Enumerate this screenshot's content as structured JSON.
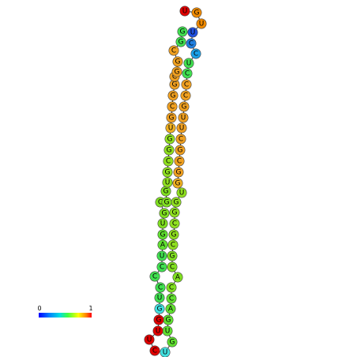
{
  "legend": {
    "min_label": "0",
    "max_label": "1"
  },
  "nucleotides": [
    {
      "base": "U",
      "color": "#e00000"
    },
    {
      "base": "G",
      "color": "#f08a00"
    },
    {
      "base": "U",
      "color": "#f08a00"
    },
    {
      "base": "U",
      "color": "#2050e0"
    },
    {
      "base": "C",
      "color": "#1f7fe0"
    },
    {
      "base": "C",
      "color": "#1aa0e8"
    },
    {
      "base": "U",
      "color": "#40e050"
    },
    {
      "base": "C",
      "color": "#40e050"
    },
    {
      "base": "C",
      "color": "#f0a020"
    },
    {
      "base": "C",
      "color": "#f0a020"
    },
    {
      "base": "G",
      "color": "#f0a020"
    },
    {
      "base": "U",
      "color": "#f0a020"
    },
    {
      "base": "U",
      "color": "#f0a020"
    },
    {
      "base": "C",
      "color": "#f0a020"
    },
    {
      "base": "G",
      "color": "#f0a020"
    },
    {
      "base": "C",
      "color": "#f0a020"
    },
    {
      "base": "G",
      "color": "#f0a020"
    },
    {
      "base": "G",
      "color": "#f0b020"
    },
    {
      "base": "U",
      "color": "#90e020"
    },
    {
      "base": "G",
      "color": "#90e020"
    },
    {
      "base": "G",
      "color": "#90e020"
    },
    {
      "base": "C",
      "color": "#90e020"
    },
    {
      "base": "G",
      "color": "#90e020"
    },
    {
      "base": "C",
      "color": "#90e020"
    },
    {
      "base": "G",
      "color": "#80e020"
    },
    {
      "base": "C",
      "color": "#80e020"
    },
    {
      "base": "A",
      "color": "#80e020"
    },
    {
      "base": "C",
      "color": "#80e020"
    },
    {
      "base": "C",
      "color": "#60e030"
    },
    {
      "base": "A",
      "color": "#60e030"
    },
    {
      "base": "G",
      "color": "#60e030"
    },
    {
      "base": "U",
      "color": "#60e030"
    },
    {
      "base": "G",
      "color": "#60e030"
    },
    {
      "base": "U",
      "color": "#40e0e0"
    },
    {
      "base": "C",
      "color": "#e00000"
    },
    {
      "base": "U",
      "color": "#e00000"
    },
    {
      "base": "U",
      "color": "#e00000"
    },
    {
      "base": "G",
      "color": "#e00000"
    },
    {
      "base": "G",
      "color": "#40e0e0"
    },
    {
      "base": "U",
      "color": "#40e050"
    },
    {
      "base": "C",
      "color": "#40e050"
    },
    {
      "base": "C",
      "color": "#40e050"
    },
    {
      "base": "C",
      "color": "#40e050"
    },
    {
      "base": "U",
      "color": "#40e050"
    },
    {
      "base": "A",
      "color": "#60e030"
    },
    {
      "base": "G",
      "color": "#60e030"
    },
    {
      "base": "U",
      "color": "#80e020"
    },
    {
      "base": "G",
      "color": "#80e020"
    },
    {
      "base": "C",
      "color": "#80e020"
    },
    {
      "base": "G",
      "color": "#80e020"
    },
    {
      "base": "G",
      "color": "#80e020"
    },
    {
      "base": "U",
      "color": "#90e020"
    },
    {
      "base": "G",
      "color": "#90e020"
    },
    {
      "base": "C",
      "color": "#90e020"
    },
    {
      "base": "G",
      "color": "#90e020"
    },
    {
      "base": "G",
      "color": "#90e020"
    },
    {
      "base": "U",
      "color": "#f0b020"
    },
    {
      "base": "G",
      "color": "#f0a020"
    },
    {
      "base": "C",
      "color": "#f0a020"
    },
    {
      "base": "G",
      "color": "#f0a020"
    },
    {
      "base": "G",
      "color": "#f0a020"
    },
    {
      "base": "C",
      "color": "#f0a020"
    },
    {
      "base": "G",
      "color": "#f0a020"
    },
    {
      "base": "G",
      "color": "#f0a020"
    },
    {
      "base": "C",
      "color": "#f0a020"
    },
    {
      "base": "G",
      "color": "#40e050"
    },
    {
      "base": "G",
      "color": "#40e050"
    },
    {
      "base": "U",
      "color": "#e00000"
    },
    {
      "base": "G",
      "color": "#1f7fe0"
    },
    {
      "base": "G",
      "color": "#1a3fd0"
    },
    {
      "base": "G",
      "color": "#1a3fd0"
    }
  ]
}
